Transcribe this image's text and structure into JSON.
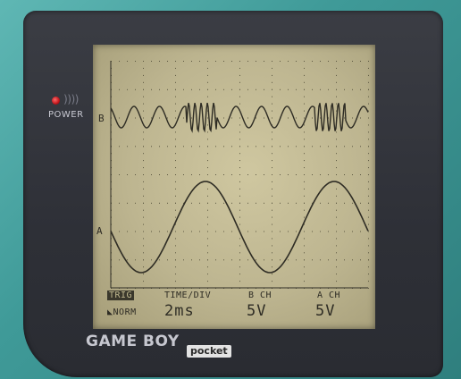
{
  "device": {
    "brand": "GAME BOY",
    "brand_suffix": "pocket",
    "power_label": "POWER",
    "led_waves": "))))"
  },
  "scope": {
    "channel_b_marker": "B",
    "channel_a_marker": "A",
    "trig_label": "TRIG",
    "trig_mode": "NORM",
    "time_div_label": "TIME/DIV",
    "time_div_value": "2ms",
    "b_ch_label": "B CH",
    "b_ch_value": "5V",
    "a_ch_label": "A CH",
    "a_ch_value": "5V"
  },
  "colors": {
    "lcd_background": "#bdb590",
    "trace": "#2e2c24",
    "shell": "#3f9a98",
    "bezel": "#2e3037",
    "led": "#c0141a"
  },
  "icons": {
    "trigger_edge": "trigger-edge-icon",
    "power_led": "power-led-icon"
  }
}
